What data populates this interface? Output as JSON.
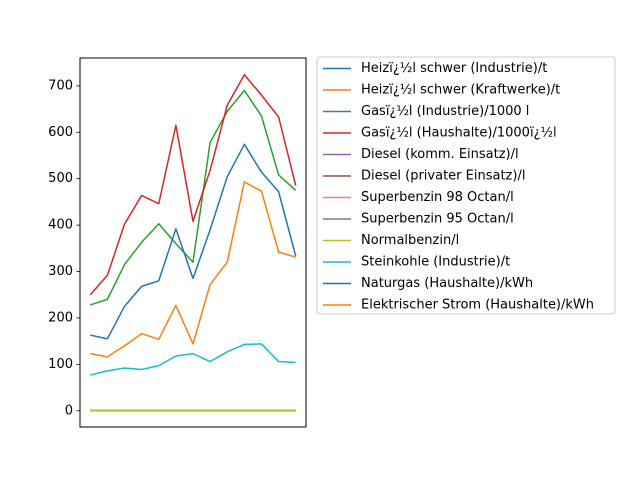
{
  "chart_data": {
    "type": "line",
    "title": "",
    "xlabel": "",
    "ylabel": "",
    "x_ticks_visible": false,
    "ylim": [
      -35,
      760
    ],
    "yticks": [
      0,
      100,
      200,
      300,
      400,
      500,
      600,
      700
    ],
    "grid": false,
    "legend_position": "outside-right",
    "x": [
      1,
      2,
      3,
      4,
      5,
      6,
      7,
      8,
      9,
      10,
      11,
      12,
      13
    ],
    "series": [
      {
        "name": "Heizï¿½l schwer (Industrie)/t",
        "color": "#1f77b4",
        "values": [
          0,
          0,
          0,
          0,
          0,
          0,
          0,
          0,
          0,
          0,
          0,
          0,
          0
        ]
      },
      {
        "name": "Heizï¿½l schwer (Kraftwerke)/t",
        "color": "#ff7f0e",
        "values": [
          0,
          0,
          0,
          0,
          0,
          0,
          0,
          0,
          0,
          0,
          0,
          0,
          0
        ]
      },
      {
        "name": "Gasï¿½l (Industrie)/1000 l",
        "color": "#2ca02c",
        "values": [
          228,
          240,
          315,
          363,
          403,
          360,
          320,
          578,
          645,
          690,
          635,
          508,
          475
        ]
      },
      {
        "name": "Gasï¿½l (Haushalte)/1000ï¿½l",
        "color": "#d62728",
        "values": [
          250,
          292,
          402,
          464,
          446,
          615,
          408,
          518,
          658,
          724,
          680,
          633,
          485
        ]
      },
      {
        "name": "Diesel (komm. Einsatz)/l",
        "color": "#9467bd",
        "values": [
          1,
          1,
          1,
          1,
          1,
          1,
          1,
          1,
          1,
          1,
          1,
          1,
          1
        ]
      },
      {
        "name": "Diesel (privater Einsatz)/l",
        "color": "#8c564b",
        "values": [
          1,
          1,
          1,
          1,
          1,
          1,
          1,
          1,
          1,
          1,
          1,
          1,
          1
        ]
      },
      {
        "name": "Superbenzin 98 Octan/l",
        "color": "#e377c2",
        "values": [
          1,
          1,
          1,
          1,
          1,
          1,
          1,
          1,
          1,
          1,
          1,
          1,
          1
        ]
      },
      {
        "name": "Superbenzin 95 Octan/l",
        "color": "#7f7f7f",
        "values": [
          1,
          1,
          1,
          1,
          1,
          1,
          1,
          1,
          1,
          1,
          1,
          1,
          1
        ]
      },
      {
        "name": "Normalbenzin/l",
        "color": "#bcbd22",
        "values": [
          1,
          1,
          1,
          1,
          1,
          1,
          1,
          1,
          1,
          1,
          1,
          1,
          1
        ]
      },
      {
        "name": "Steinkohle (Industrie)/t",
        "color": "#17becf",
        "values": [
          77,
          86,
          92,
          89,
          97,
          118,
          123,
          106,
          127,
          143,
          144,
          106,
          104
        ]
      },
      {
        "name": "Naturgas (Haushalte)/kWh",
        "color": "#1f77b4",
        "values": [
          163,
          155,
          225,
          268,
          280,
          392,
          285,
          390,
          504,
          574,
          514,
          472,
          333
        ]
      },
      {
        "name": "Elektrischer Strom (Haushalte)/kWh",
        "color": "#ff7f0e",
        "values": [
          123,
          116,
          140,
          166,
          154,
          227,
          144,
          272,
          320,
          493,
          473,
          342,
          331
        ]
      }
    ]
  }
}
